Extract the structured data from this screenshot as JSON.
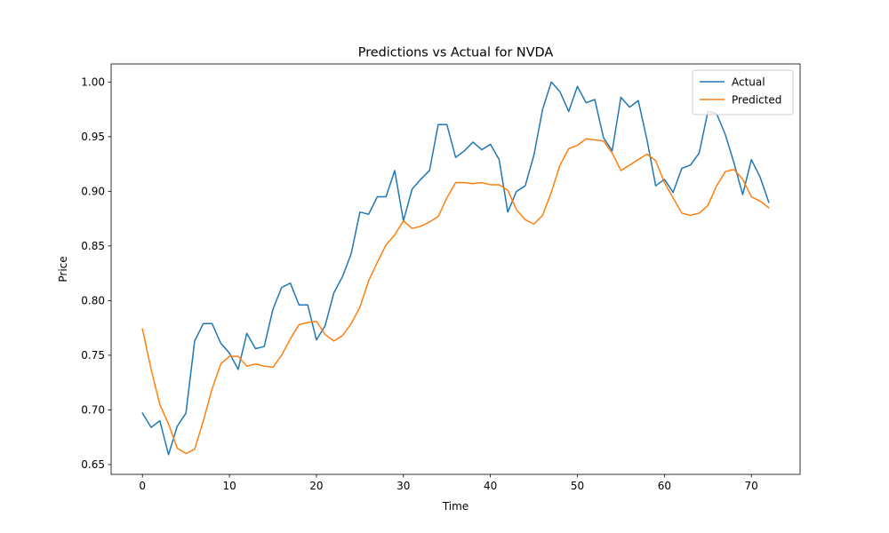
{
  "chart_data": {
    "type": "line",
    "title": "Predictions vs Actual for NVDA",
    "xlabel": "Time",
    "ylabel": "Price",
    "xlim": [
      -3.6,
      75.6
    ],
    "ylim": [
      0.641,
      1.0165
    ],
    "xticks": [
      0,
      10,
      20,
      30,
      40,
      50,
      60,
      70
    ],
    "xtick_labels": [
      "0",
      "10",
      "20",
      "30",
      "40",
      "50",
      "60",
      "70"
    ],
    "yticks": [
      0.65,
      0.7,
      0.75,
      0.8,
      0.85,
      0.9,
      0.95,
      1.0
    ],
    "ytick_labels": [
      "0.65",
      "0.70",
      "0.75",
      "0.80",
      "0.85",
      "0.90",
      "0.95",
      "1.00"
    ],
    "grid": false,
    "legend_position": "top-right",
    "series": [
      {
        "name": "Actual",
        "color": "#1f77b4",
        "values": [
          0.697,
          0.684,
          0.69,
          0.659,
          0.685,
          0.697,
          0.763,
          0.779,
          0.779,
          0.761,
          0.752,
          0.737,
          0.77,
          0.756,
          0.758,
          0.792,
          0.812,
          0.816,
          0.796,
          0.796,
          0.764,
          0.777,
          0.807,
          0.822,
          0.843,
          0.881,
          0.879,
          0.895,
          0.895,
          0.919,
          0.873,
          0.902,
          0.911,
          0.919,
          0.961,
          0.961,
          0.931,
          0.937,
          0.945,
          0.938,
          0.943,
          0.929,
          0.881,
          0.9,
          0.905,
          0.933,
          0.975,
          1.0,
          0.991,
          0.973,
          0.996,
          0.981,
          0.984,
          0.949,
          0.937,
          0.986,
          0.977,
          0.983,
          0.947,
          0.905,
          0.911,
          0.899,
          0.921,
          0.924,
          0.935,
          0.973,
          0.971,
          0.952,
          0.926,
          0.897,
          0.929,
          0.913,
          0.89
        ]
      },
      {
        "name": "Predicted",
        "color": "#ff7f0e",
        "values": [
          0.774,
          0.737,
          0.705,
          0.687,
          0.665,
          0.66,
          0.664,
          0.69,
          0.719,
          0.742,
          0.749,
          0.749,
          0.74,
          0.742,
          0.74,
          0.739,
          0.75,
          0.765,
          0.778,
          0.78,
          0.781,
          0.769,
          0.763,
          0.768,
          0.779,
          0.794,
          0.818,
          0.835,
          0.851,
          0.86,
          0.873,
          0.866,
          0.868,
          0.872,
          0.877,
          0.894,
          0.908,
          0.908,
          0.907,
          0.908,
          0.906,
          0.906,
          0.901,
          0.883,
          0.874,
          0.87,
          0.878,
          0.899,
          0.924,
          0.939,
          0.942,
          0.948,
          0.947,
          0.946,
          0.935,
          0.919,
          0.924,
          0.929,
          0.934,
          0.928,
          0.908,
          0.894,
          0.88,
          0.878,
          0.88,
          0.887,
          0.905,
          0.918,
          0.92,
          0.911,
          0.895,
          0.891,
          0.885
        ]
      }
    ]
  }
}
